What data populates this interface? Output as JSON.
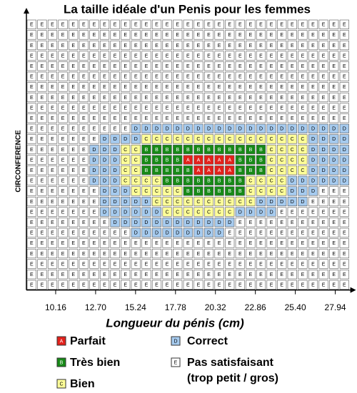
{
  "chart_data": {
    "type": "heatmap",
    "title": "La taille idéale d'un Penis pour les femmes",
    "y_label": "CIRCONFERENCE",
    "x_label": "Longueur du pénis (cm)",
    "xlim": [
      8.3,
      28.85
    ],
    "xticks": [
      10.16,
      {
        "value": 12.7,
        "label": "12.70"
      },
      15.24,
      17.78,
      20.32,
      22.86,
      {
        "value": 25.4,
        "label": "25.40"
      },
      27.94
    ],
    "grid": {
      "rows": [
        "EEEEEEEEEEEEEEEEEEEEEEEEEEEEEEE",
        "EEEEEEEEEEEEEEEEEEEEEEEEEEEEEEE",
        "EEEEEEEEEEEEEEEEEEEEEEEEEEEEEEE",
        "EEEEEEEEEEEEEEEEEEEEEEEEEEEEEEE",
        "EEEEEEEEEEEEEEEEEEEEEEEEEEEEEEE",
        "EEEEEEEEEEEEEEEEEEEEEEEEEEEEEEE",
        "EEEEEEEEEEEEEEEEEEEEEEEEEEEEEEE",
        "EEEEEEEEEEEEEEEEEEEEEEEEEEEEEEE",
        "EEEEEEEEEEEEEEEEEEEEEEEEEEEEEEE",
        "EEEEEEEEEEEEEEEEEEEEEEEEEEEEEEE",
        "EEEEEEEEEEDDDDDDDDDDDDDDDDDDDDD",
        "EEEEEEEDDDDCCCCCCCCCCCCCCCCDDDD",
        "EEEEEEDDDCCBBBBBBBBBBBBCCCCDDDD",
        "EEEEEEDDDCCBBBBAAAAABBBCCCCDDDD",
        "EEEEEEDDDCCBBBBBAAAABBBCCCCDDDD",
        "EEEEEEDDDCCCCBBBBBBBBCCCCDDDDDD",
        "EEEEEEEDDDCCCCCBBBBBBCCCCDDDEEE",
        "EEEEEEEDDDDDCCCCCCCCCCDDDDDEEEE",
        "EEEEEEEDDDDDDCCCCCCCDDDDEEEEEEE",
        "EEEEEEEEDDDDDDDDDDDDEEEEEEEEEEE",
        "EEEEEEEEEEDDDDDDDDDEEEEEEEEEEEE",
        "EEEEEEEEEEEEEEEEEEEEEEEEEEEEEEE",
        "EEEEEEEEEEEEEEEEEEEEEEEEEEEEEEE",
        "EEEEEEEEEEEEEEEEEEEEEEEEEEEEEEE",
        "EEEEEEEEEEEEEEEEEEEEEEEEEEEEEEE",
        "EEEEEEEEEEEEEEEEEEEEEEEEEEEEEEE"
      ]
    },
    "legend": [
      {
        "letter": "A",
        "label": "Parfait",
        "color": "#e3211b"
      },
      {
        "letter": "B",
        "label": "Très bien",
        "color": "#178a17"
      },
      {
        "letter": "C",
        "label": "Bien",
        "color": "#ffff99"
      },
      {
        "letter": "D",
        "label": "Correct",
        "color": "#a6cbef"
      },
      {
        "letter": "E",
        "label": "Pas satisfaisant",
        "note": "(trop petit / gros)",
        "color": "#ffffff"
      }
    ]
  }
}
